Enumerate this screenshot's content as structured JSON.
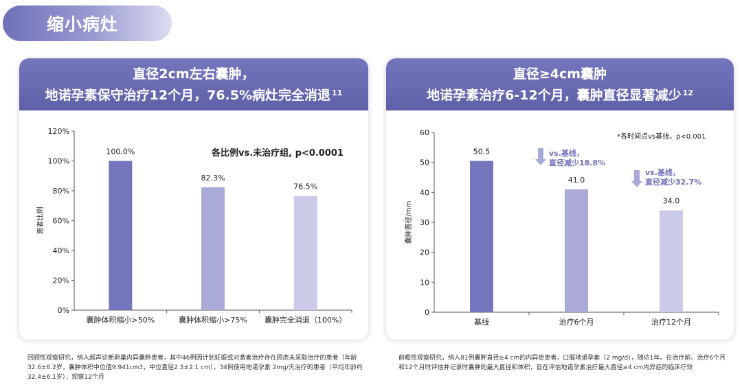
{
  "section_title": "缩小病灶",
  "left_card": {
    "header_line1": "直径2cm左右囊肿，",
    "header_line2": "地诺孕素保守治疗12个月，76.5%病灶完全消退",
    "header_ref": "11",
    "annotation": "各比例vs.未治疗组, p<0.0001",
    "footnote": "回顾性观察研究，纳入超声诊断卵巢内异囊肿患者，其中46例因计划妊娠或对激素治疗存在顾虑未采取治疗的患者（年龄32.6±6.2岁，囊肿体积中位值9.941cm3，中位直径2.3±2.1 cm），34例使用地诺孕素 2mg/天治疗的患者（平均年龄约32.4±6.1岁），观察12个月"
  },
  "right_card": {
    "header_line1": "直径≥4cm囊肿",
    "header_line2": "地诺孕素治疗6-12个月，囊肿直径显著减少",
    "header_ref": "12",
    "note": "*各时间点vs基线，p<0.001",
    "annotation1_line1": "vs.基线，",
    "annotation1_line2": "直径减少18.8%",
    "annotation2_line1": "vs.基线，",
    "annotation2_line2": "直径减少32.7%",
    "footnote": "前瞻性观察研究，纳入81例囊肿直径≥4 cm的内异症患者，口服地诺孕素（2 mg/d），随访1年。在治疗前、治疗6个月和12个月时评估并记录时囊肿的最大直径和体积，旨在评估地诺孕素治疗最大直径≥4 cm内异症的临床疗效"
  },
  "colors": {
    "bar_dark": "#7476bd",
    "bar_mid": "#a9aad8",
    "bar_light": "#ccccea",
    "accent": "#6f71b9"
  },
  "chart_data": [
    {
      "type": "bar",
      "ylabel": "患者比例",
      "ylim": [
        0,
        120
      ],
      "yticks": [
        "0%",
        "20%",
        "40%",
        "60%",
        "80%",
        "100%",
        "120%"
      ],
      "categories": [
        "囊肿体积缩小>50%",
        "囊肿体积缩小>75%",
        "囊肿完全消退（100%）"
      ],
      "values": [
        100.0,
        82.3,
        76.5
      ],
      "value_labels": [
        "100.0%",
        "82.3%",
        "76.5%"
      ],
      "grid": false
    },
    {
      "type": "bar",
      "ylabel": "囊肿直径/mm",
      "ylim": [
        0,
        60
      ],
      "yticks": [
        "0",
        "10",
        "20",
        "30",
        "40",
        "50",
        "60"
      ],
      "categories": [
        "基线",
        "治疗6个月",
        "治疗12个月"
      ],
      "values": [
        50.5,
        41.0,
        34.0
      ],
      "value_labels": [
        "50.5",
        "41.0",
        "34.0"
      ],
      "grid": false
    }
  ]
}
